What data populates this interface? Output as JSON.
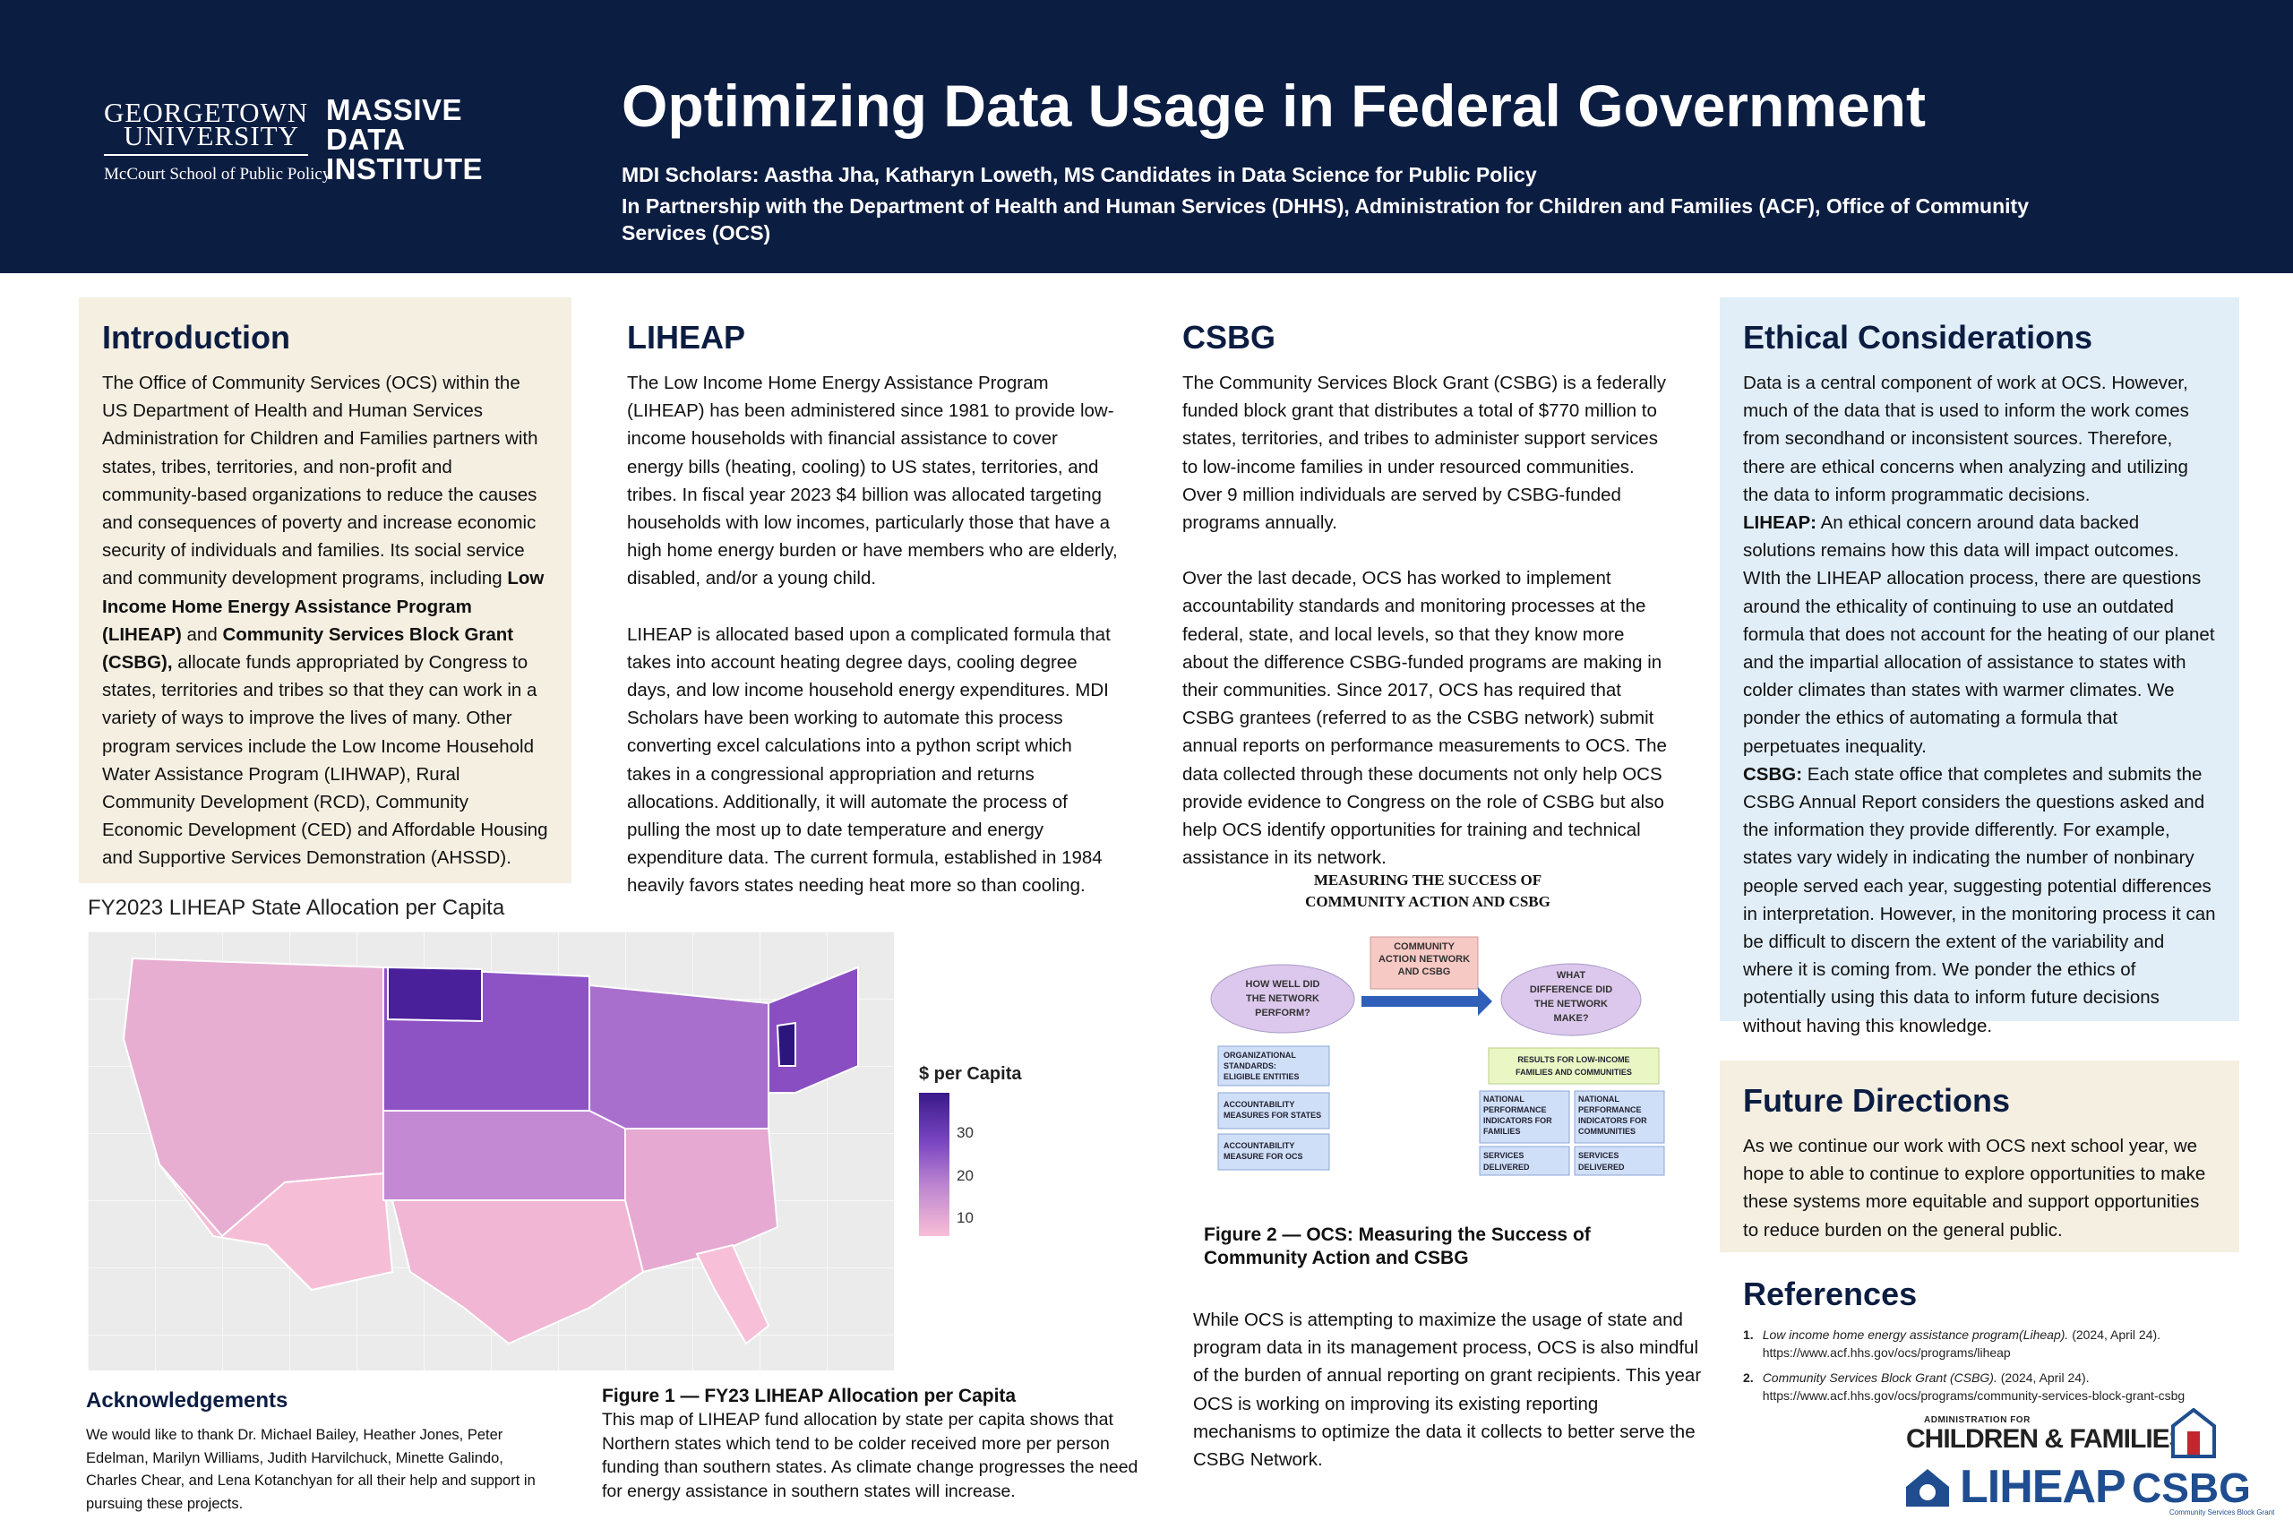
{
  "header": {
    "logo": {
      "university_line1": "GEORGETOWN",
      "university_line2": "UNIVERSITY",
      "school": "McCourt School of Public Policy",
      "institute_line1": "MASSIVE",
      "institute_line2": "DATA",
      "institute_line3": "INSTITUTE"
    },
    "title": "Optimizing Data Usage in Federal Government",
    "scholars": "MDI Scholars: Aastha Jha, Katharyn Loweth, MS Candidates in Data Science for Public Policy",
    "partnership": "In Partnership with the Department of Health and Human Services (DHHS), Administration for Children and Families (ACF), Office of Community Services (OCS)"
  },
  "introduction": {
    "heading": "Introduction",
    "text_before": "The Office of Community Services (OCS) within the US Department of Health and Human Services Administration for Children and Families partners with states, tribes, territories, and non-profit and community-based organizations to reduce the causes and consequences of poverty and increase economic security of individuals and families. Its social service and community development programs, including ",
    "bold_liheap": "Low Income Home Energy Assistance Program (LIHEAP)",
    "text_and": " and ",
    "bold_csbg": "Community Services Block Grant (CSBG),",
    "text_after": " allocate funds appropriated by Congress to states, territories and tribes so that they can work in a variety of ways to improve the lives of many. Other program services include the Low Income Household Water Assistance Program (LIHWAP), Rural Community Development (RCD), Community Economic Development (CED) and Affordable Housing and Supportive Services Demonstration (AHSSD)."
  },
  "liheap": {
    "heading": "LIHEAP",
    "para1": "The Low Income Home Energy Assistance Program (LIHEAP) has been administered since 1981 to provide low-income households with financial assistance to cover energy bills (heating, cooling)  to US states, territories, and tribes. In fiscal year 2023 $4 billion was allocated targeting households with low incomes, particularly those that have a high home energy burden or have members who are elderly, disabled, and/or a young child.",
    "para2": "LIHEAP is allocated based upon a complicated formula that takes into account heating degree days, cooling degree days, and low income household energy expenditures. MDI Scholars have been working to automate this process converting excel calculations into a python script which takes in a congressional appropriation and returns allocations. Additionally, it will automate the process of pulling the most up to date temperature and energy expenditure data. The current formula, established in 1984 heavily favors states needing heat more so than cooling."
  },
  "csbg": {
    "heading": "CSBG",
    "para1": "The Community Services Block Grant (CSBG) is a federally funded block grant that distributes a total of $770 million to states, territories, and tribes to administer support services to low-income families in under resourced communities. Over 9 million individuals are served by CSBG-funded programs annually.",
    "para2": "Over the last decade, OCS has worked to implement accountability standards and monitoring processes at the federal, state, and local levels, so that they know more about the difference CSBG-funded programs are making in their communities. Since 2017, OCS has required that CSBG grantees (referred to as the CSBG network) submit annual reports on performance measurements to OCS. The data collected through these documents not only help OCS provide evidence to Congress on the role of CSBG but also help OCS identify opportunities for training and technical assistance in its network.",
    "closing": "While OCS is attempting to maximize the usage of state and program data in its management process, OCS is also mindful of the burden of annual reporting on grant recipients. This year OCS is working on improving its existing reporting mechanisms to optimize the data it collects to better serve the CSBG Network."
  },
  "diagram": {
    "title_line1": "MEASURING THE SUCCESS OF",
    "title_line2": "COMMUNITY ACTION AND CSBG",
    "center_box": [
      "COMMUNITY",
      "ACTION NETWORK",
      "AND CSBG"
    ],
    "left_oval": [
      "HOW WELL DID",
      "THE NETWORK",
      "PERFORM?"
    ],
    "right_oval": [
      "WHAT",
      "DIFFERENCE DID",
      "THE NETWORK",
      "MAKE?"
    ],
    "left_boxes": [
      [
        "ORGANIZATIONAL",
        "STANDARDS:",
        "ELIGIBLE ENTITIES"
      ],
      [
        "ACCOUNTABILITY",
        "MEASURES FOR STATES"
      ],
      [
        "ACCOUNTABILITY",
        "MEASURE FOR OCS"
      ]
    ],
    "results_box": [
      "RESULTS FOR LOW-INCOME",
      "FAMILIES AND COMMUNITIES"
    ],
    "right_boxes": [
      [
        "NATIONAL",
        "PERFORMANCE",
        "INDICATORS FOR",
        "FAMILIES"
      ],
      [
        "NATIONAL",
        "PERFORMANCE",
        "INDICATORS FOR",
        "COMMUNITIES"
      ],
      [
        "SERVICES",
        "DELIVERED"
      ],
      [
        "SERVICES",
        "DELIVERED"
      ]
    ]
  },
  "figure2": {
    "caption": "Figure 2 — OCS: Measuring the Success of Community Action and CSBG"
  },
  "map": {
    "title": "FY2023 LIHEAP State Allocation per Capita",
    "legend_title": "$ per Capita",
    "legend_ticks": [
      "30",
      "20",
      "10"
    ],
    "colors": {
      "high": "#3a1a8a",
      "mid": "#9a63c9",
      "low": "#f8bed6"
    }
  },
  "figure1": {
    "caption": "Figure 1 — FY23 LIHEAP Allocation per Capita",
    "text": "This map of LIHEAP fund allocation by state per capita shows that Northern states which tend to be colder received more per person funding than southern states. As climate change progresses the need for energy assistance in southern states will increase."
  },
  "acknowledgements": {
    "heading": "Acknowledgements",
    "text": "We would like to thank Dr. Michael Bailey, Heather Jones, Peter Edelman, Marilyn Williams, Judith Harvilchuck, Minette Galindo, Charles Chear, and Lena Kotanchyan for all their help and support in pursuing these projects."
  },
  "ethics": {
    "heading": "Ethical Considerations",
    "intro": "Data is a central component of work at OCS. However, much of the data that is used to inform the work comes from secondhand or inconsistent sources. Therefore, there are ethical concerns when analyzing and utilizing the data to inform programmatic decisions.",
    "liheap_label": "LIHEAP:",
    "liheap_text": " An ethical concern around data backed solutions remains how this data will impact outcomes. WIth the LIHEAP allocation process, there are questions around the ethicality of continuing to use an outdated formula that does not account for the heating of our planet and the impartial allocation of assistance to states with colder climates than states with warmer climates. We ponder the ethics of automating a formula that perpetuates inequality.",
    "csbg_label": "CSBG:",
    "csbg_text": " Each state office that completes and submits the CSBG Annual Report considers the questions asked and the information they provide differently. For example, states vary widely in indicating the number of nonbinary people served each year, suggesting potential differences in interpretation. However, in the monitoring process it can be difficult to discern the extent of the variability and where it is coming from. We ponder the ethics of potentially using this data to inform future decisions without having this knowledge."
  },
  "future": {
    "heading": "Future Directions",
    "text": "As we continue our work with OCS next school year, we hope to able to continue to explore opportunities to make these systems more equitable and support opportunities to reduce burden on the general public."
  },
  "references": {
    "heading": "References",
    "items": [
      {
        "num": "1.",
        "title": "Low income home energy assistance program(Liheap).",
        "date": " (2024, April 24).",
        "url": "https://www.acf.hhs.gov/ocs/programs/liheap"
      },
      {
        "num": "2.",
        "title": "Community Services Block Grant (CSBG).",
        "date": " (2024, April 24).",
        "url": "https://www.acf.hhs.gov/ocs/programs/community-services-block-grant-csbg"
      }
    ]
  },
  "footer_logos": {
    "acf_small": "ADMINISTRATION FOR",
    "acf_big": "CHILDREN & FAMILIES",
    "liheap": "LIHEAP",
    "csbg": "CSBG",
    "csbg_sub": "Community Services Block Grant"
  }
}
